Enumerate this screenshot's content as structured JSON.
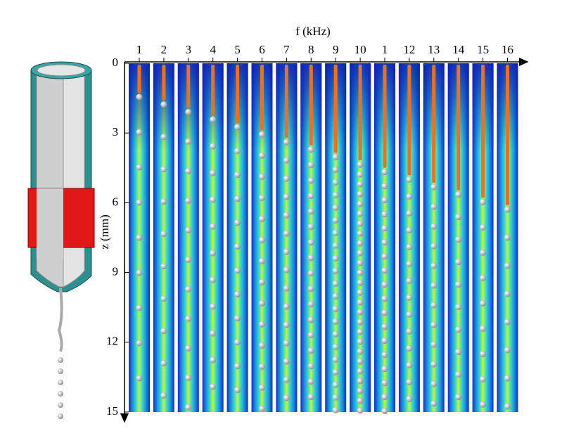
{
  "chart_data": {
    "type": "heatmap-panels",
    "xlabel": "f (kHz)",
    "categories": [
      "1",
      "2",
      "3",
      "4",
      "5",
      "6",
      "7",
      "8",
      "9",
      "10",
      "1",
      "12",
      "13",
      "14",
      "15",
      "16"
    ],
    "ylabel": "z (mm)",
    "ylim": [
      0,
      15
    ],
    "yticks": [
      0,
      3,
      6,
      9,
      12,
      15
    ]
  }
}
